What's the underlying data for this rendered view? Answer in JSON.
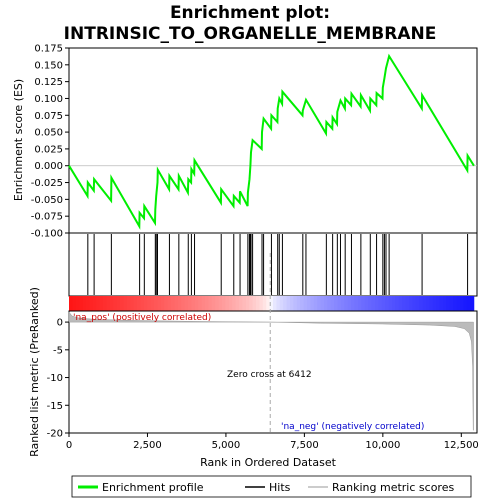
{
  "chart_data": {
    "type": "line",
    "title_line1": "Enrichment plot:",
    "title_line2": "INTRINSIC_TO_ORGANELLE_MEMBRANE",
    "xlabel": "Rank in Ordered Dataset",
    "ylabel_top": "Enrichment score (ES)",
    "ylabel_bottom": "Ranked list metric (PreRanked)",
    "xlim": [
      0,
      13000
    ],
    "es_ylim": [
      -0.1,
      0.175
    ],
    "metric_ylim": [
      -20,
      2
    ],
    "x_ticks": [
      0,
      2500,
      5000,
      7500,
      10000,
      12500
    ],
    "x_tick_labels": [
      "0",
      "2,500",
      "5,000",
      "7,500",
      "10,000",
      "12,500"
    ],
    "es_ticks": [
      -0.1,
      -0.075,
      -0.05,
      -0.025,
      0.0,
      0.025,
      0.05,
      0.075,
      0.1,
      0.125,
      0.15,
      0.175
    ],
    "es_tick_labels": [
      "-0.100",
      "-0.075",
      "-0.050",
      "-0.025",
      "0.000",
      "0.025",
      "0.050",
      "0.075",
      "0.100",
      "0.125",
      "0.150",
      "0.175"
    ],
    "metric_ticks": [
      0,
      -5,
      -10,
      -15,
      -20
    ],
    "metric_tick_labels": [
      "0",
      "-5",
      "-10",
      "-15",
      "-20"
    ],
    "hits": [
      600,
      800,
      1350,
      2250,
      2400,
      2750,
      2780,
      2820,
      3200,
      3500,
      3800,
      3900,
      4000,
      4850,
      5250,
      5450,
      5700,
      5750,
      5780,
      5800,
      5850,
      6150,
      6200,
      6450,
      6650,
      6700,
      6800,
      7450,
      7550,
      8200,
      8400,
      8550,
      8650,
      8800,
      9000,
      9300,
      9600,
      9800,
      10000,
      10050,
      10100,
      10200,
      11250,
      12700
    ],
    "es_curve": [
      [
        0,
        0.0
      ],
      [
        590,
        -0.045
      ],
      [
        600,
        -0.025
      ],
      [
        790,
        -0.037
      ],
      [
        800,
        -0.02
      ],
      [
        1340,
        -0.052
      ],
      [
        1350,
        -0.018
      ],
      [
        2240,
        -0.09
      ],
      [
        2250,
        -0.07
      ],
      [
        2390,
        -0.078
      ],
      [
        2400,
        -0.06
      ],
      [
        2740,
        -0.085
      ],
      [
        2750,
        -0.065
      ],
      [
        2780,
        -0.045
      ],
      [
        2820,
        -0.025
      ],
      [
        2830,
        -0.006
      ],
      [
        3190,
        -0.035
      ],
      [
        3200,
        -0.015
      ],
      [
        3490,
        -0.035
      ],
      [
        3500,
        -0.015
      ],
      [
        3790,
        -0.04
      ],
      [
        3800,
        -0.02
      ],
      [
        3890,
        -0.025
      ],
      [
        3900,
        -0.005
      ],
      [
        3990,
        -0.012
      ],
      [
        4000,
        0.008
      ],
      [
        4840,
        -0.055
      ],
      [
        4850,
        -0.035
      ],
      [
        5240,
        -0.06
      ],
      [
        5250,
        -0.045
      ],
      [
        5440,
        -0.055
      ],
      [
        5450,
        -0.038
      ],
      [
        5690,
        -0.06
      ],
      [
        5700,
        -0.04
      ],
      [
        5750,
        -0.02
      ],
      [
        5780,
        0.0
      ],
      [
        5800,
        0.02
      ],
      [
        5850,
        0.038
      ],
      [
        6140,
        0.025
      ],
      [
        6150,
        0.05
      ],
      [
        6200,
        0.07
      ],
      [
        6440,
        0.055
      ],
      [
        6450,
        0.075
      ],
      [
        6640,
        0.065
      ],
      [
        6650,
        0.085
      ],
      [
        6700,
        0.1
      ],
      [
        6790,
        0.092
      ],
      [
        6800,
        0.11
      ],
      [
        7440,
        0.075
      ],
      [
        7450,
        0.082
      ],
      [
        7550,
        0.098
      ],
      [
        8190,
        0.048
      ],
      [
        8200,
        0.065
      ],
      [
        8390,
        0.055
      ],
      [
        8400,
        0.072
      ],
      [
        8540,
        0.062
      ],
      [
        8550,
        0.08
      ],
      [
        8650,
        0.097
      ],
      [
        8790,
        0.085
      ],
      [
        8800,
        0.1
      ],
      [
        8990,
        0.09
      ],
      [
        9000,
        0.107
      ],
      [
        9290,
        0.088
      ],
      [
        9300,
        0.105
      ],
      [
        9590,
        0.082
      ],
      [
        9600,
        0.1
      ],
      [
        9790,
        0.09
      ],
      [
        9800,
        0.108
      ],
      [
        9990,
        0.1
      ],
      [
        10000,
        0.116
      ],
      [
        10050,
        0.13
      ],
      [
        10100,
        0.145
      ],
      [
        10200,
        0.163
      ],
      [
        11240,
        0.085
      ],
      [
        11250,
        0.105
      ],
      [
        12690,
        -0.007
      ],
      [
        12700,
        0.015
      ],
      [
        12900,
        0.0
      ]
    ],
    "metric_curve": [
      [
        0,
        1.8
      ],
      [
        100,
        1.1
      ],
      [
        300,
        0.75
      ],
      [
        800,
        0.5
      ],
      [
        2000,
        0.3
      ],
      [
        4000,
        0.12
      ],
      [
        6412,
        0.0
      ],
      [
        8000,
        -0.2
      ],
      [
        10000,
        -0.35
      ],
      [
        11500,
        -0.55
      ],
      [
        12300,
        -0.8
      ],
      [
        12600,
        -1.2
      ],
      [
        12750,
        -2.0
      ],
      [
        12820,
        -3.5
      ],
      [
        12860,
        -8.0
      ],
      [
        12880,
        -19.5
      ],
      [
        12890,
        -19.5
      ]
    ],
    "zero_cross_rank": 6412,
    "zero_cross_label": "Zero cross at 6412",
    "pos_label": "'na_pos' (positively correlated)",
    "neg_label": "'na_neg' (negatively correlated)",
    "legend": [
      "Enrichment profile",
      "Hits",
      "Ranking metric scores"
    ],
    "colors": {
      "es_line": "#00ee00",
      "hits": "#000000",
      "metric_fill": "#bbbbbb",
      "zero_cross": "#aaaaaa",
      "pos_label": "#cc0000",
      "neg_label": "#0000cc"
    }
  }
}
